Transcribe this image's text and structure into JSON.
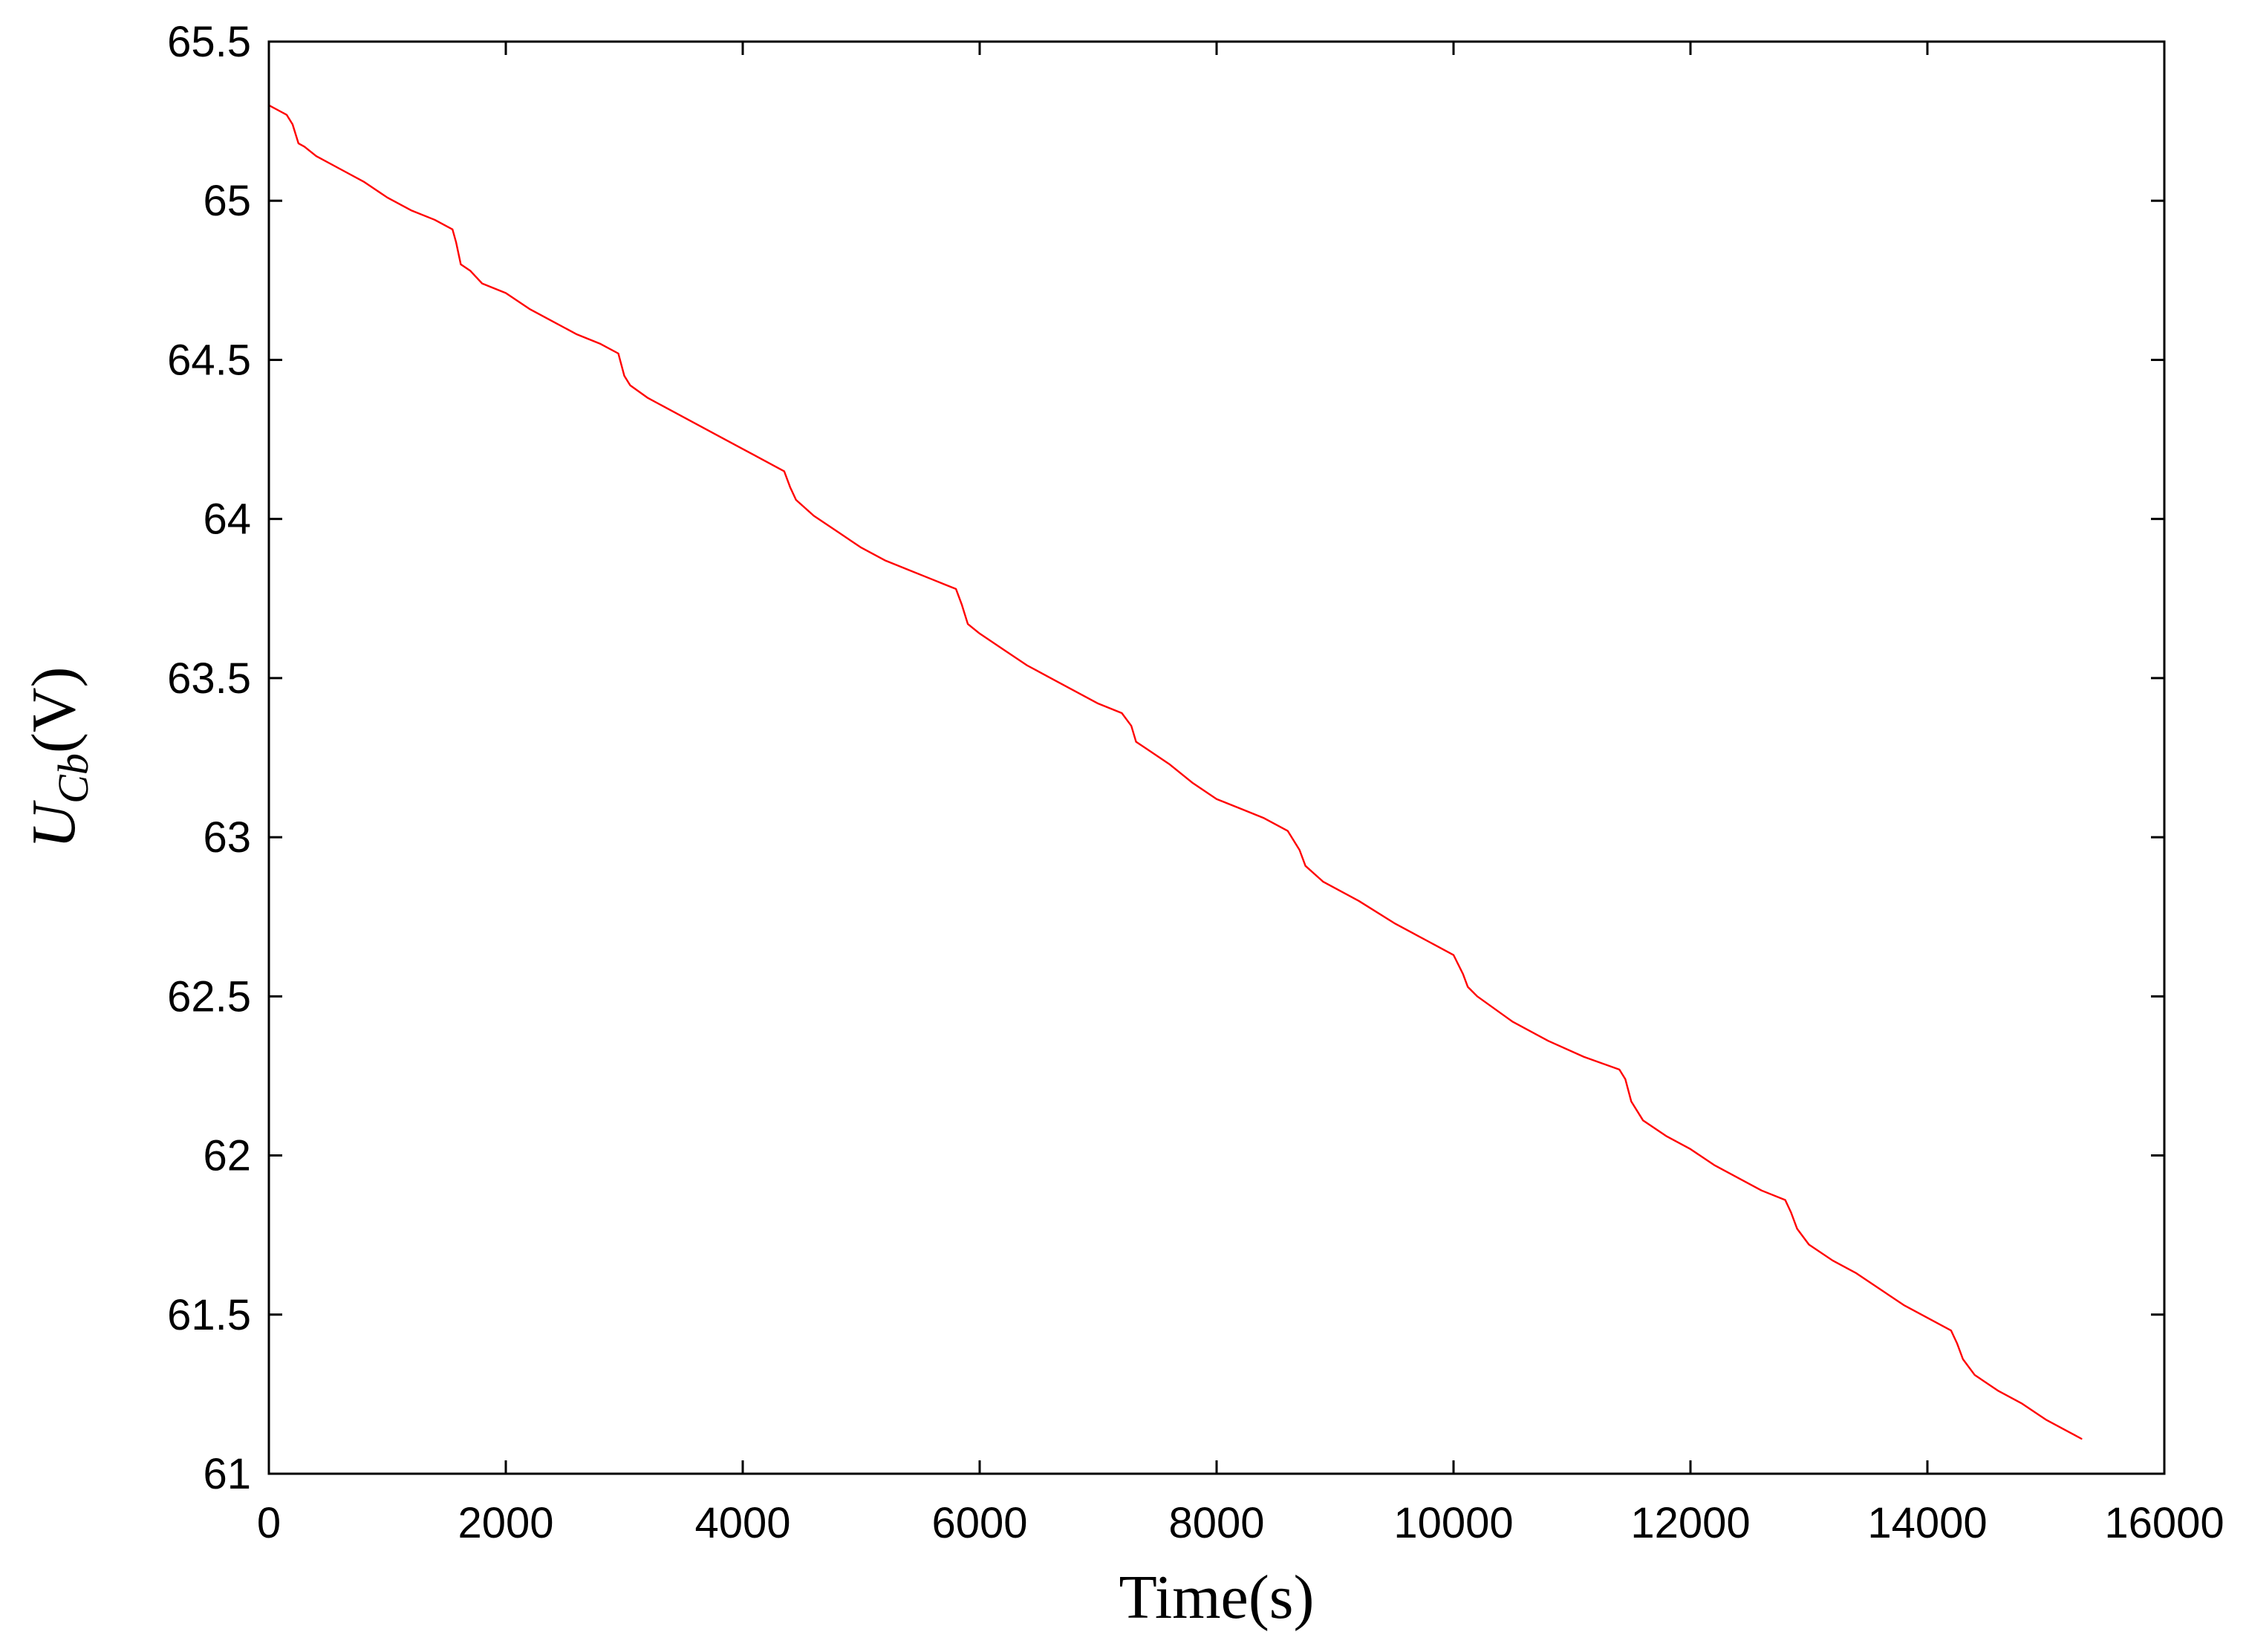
{
  "chart_data": {
    "type": "line",
    "title": "",
    "xlabel": "Time(s)",
    "ylabel": {
      "main": "U",
      "subscript": "Cb",
      "unit": "(V)"
    },
    "xlim": [
      0,
      16000
    ],
    "ylim": [
      61,
      65.5
    ],
    "x_ticks": [
      0,
      2000,
      4000,
      6000,
      8000,
      10000,
      12000,
      14000,
      16000
    ],
    "x_tick_labels": [
      "0",
      "2000",
      "4000",
      "6000",
      "8000",
      "10000",
      "12000",
      "14000",
      "16000"
    ],
    "y_ticks": [
      61,
      61.5,
      62,
      62.5,
      63,
      63.5,
      64,
      64.5,
      65,
      65.5
    ],
    "y_tick_labels": [
      "61",
      "61.5",
      "62",
      "62.5",
      "63",
      "63.5",
      "64",
      "64.5",
      "65",
      "65.5"
    ],
    "grid": false,
    "legend": "none",
    "series": [
      {
        "color": "#ff0000",
        "x": [
          0,
          150,
          200,
          250,
          300,
          400,
          600,
          800,
          1000,
          1200,
          1400,
          1550,
          1580,
          1620,
          1700,
          1800,
          2000,
          2200,
          2400,
          2600,
          2800,
          2950,
          3000,
          3050,
          3200,
          3500,
          3800,
          4000,
          4200,
          4350,
          4400,
          4450,
          4600,
          4800,
          5000,
          5200,
          5400,
          5600,
          5800,
          5850,
          5900,
          6000,
          6200,
          6400,
          6600,
          6800,
          7000,
          7200,
          7280,
          7320,
          7400,
          7600,
          7800,
          8000,
          8200,
          8400,
          8600,
          8700,
          8750,
          8900,
          9200,
          9500,
          9800,
          10000,
          10080,
          10120,
          10200,
          10500,
          10800,
          11100,
          11400,
          11450,
          11500,
          11600,
          11800,
          12000,
          12200,
          12400,
          12600,
          12800,
          12850,
          12900,
          13000,
          13200,
          13400,
          13600,
          13800,
          14000,
          14200,
          14250,
          14300,
          14400,
          14600,
          14800,
          15000,
          15200,
          15300
        ],
        "y": [
          65.3,
          65.27,
          65.24,
          65.18,
          65.17,
          65.14,
          65.1,
          65.06,
          65.01,
          64.97,
          64.94,
          64.91,
          64.87,
          64.8,
          64.78,
          64.74,
          64.71,
          64.66,
          64.62,
          64.58,
          64.55,
          64.52,
          64.45,
          64.42,
          64.38,
          64.32,
          64.26,
          64.22,
          64.18,
          64.15,
          64.1,
          64.06,
          64.01,
          63.96,
          63.91,
          63.87,
          63.84,
          63.81,
          63.78,
          63.73,
          63.67,
          63.64,
          63.59,
          63.54,
          63.5,
          63.46,
          63.42,
          63.39,
          63.35,
          63.3,
          63.28,
          63.23,
          63.17,
          63.12,
          63.09,
          63.06,
          63.02,
          62.96,
          62.91,
          62.86,
          62.8,
          62.73,
          62.67,
          62.63,
          62.57,
          62.53,
          62.5,
          62.42,
          62.36,
          62.31,
          62.27,
          62.24,
          62.17,
          62.11,
          62.06,
          62.02,
          61.97,
          61.93,
          61.89,
          61.86,
          61.82,
          61.77,
          61.72,
          61.67,
          61.63,
          61.58,
          61.53,
          61.49,
          61.45,
          61.41,
          61.36,
          61.31,
          61.26,
          61.22,
          61.17,
          61.13,
          61.11
        ]
      }
    ]
  }
}
